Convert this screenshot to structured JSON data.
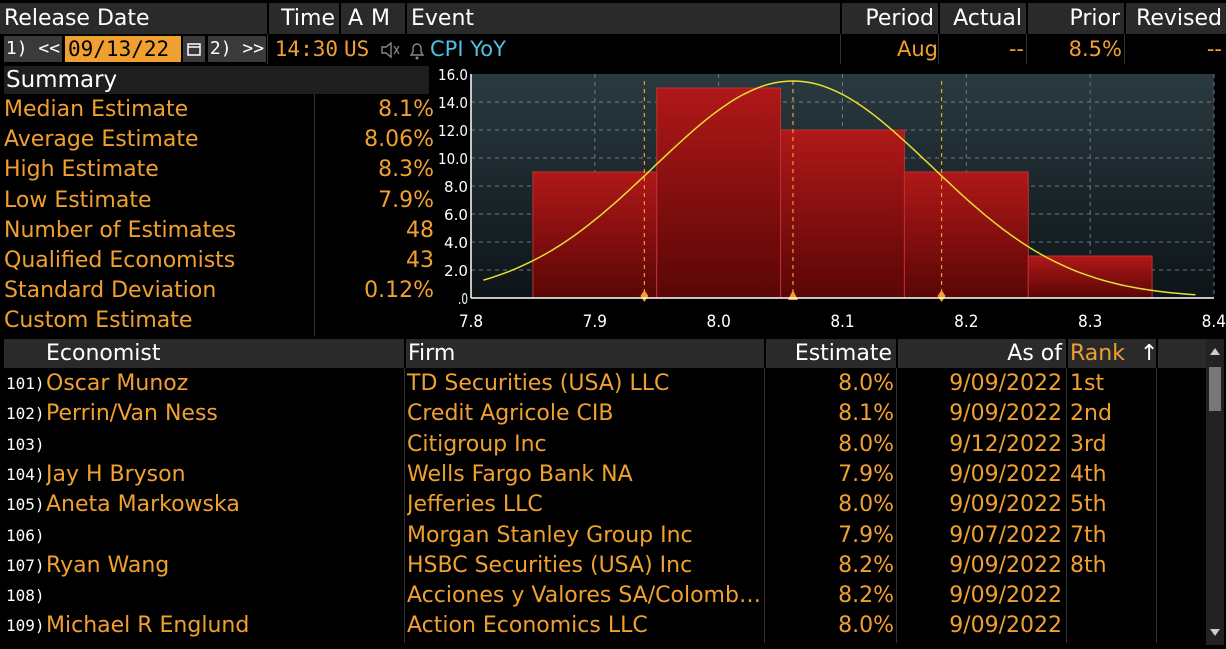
{
  "header": {
    "release_date": "Release Date",
    "time": "Time",
    "a": "A",
    "m": "M",
    "event": "Event",
    "period": "Period",
    "actual": "Actual",
    "prior": "Prior",
    "revised": "Revised"
  },
  "release": {
    "prev_label": "1) <<",
    "date": "09/13/22",
    "next_label": "2) >>",
    "time": "14:30",
    "country": "US",
    "event": "CPI YoY",
    "period": "Aug",
    "actual": "--",
    "prior": "8.5%",
    "revised": "--"
  },
  "summary": {
    "title": "Summary",
    "items": [
      {
        "label": "Median Estimate",
        "value": "8.1%"
      },
      {
        "label": "Average Estimate",
        "value": "8.06%"
      },
      {
        "label": "High Estimate",
        "value": "8.3%"
      },
      {
        "label": "Low Estimate",
        "value": "7.9%"
      },
      {
        "label": "Number of Estimates",
        "value": "48"
      },
      {
        "label": "Qualified Economists",
        "value": "43"
      },
      {
        "label": "Standard Deviation",
        "value": "0.12%"
      },
      {
        "label": "Custom Estimate",
        "value": ""
      }
    ]
  },
  "chart_data": {
    "type": "bar",
    "title": "",
    "xlabel": "",
    "ylabel": "",
    "x_ticks": [
      "7.8",
      "7.9",
      "8.0",
      "8.1",
      "8.2",
      "8.3",
      "8.4"
    ],
    "y_ticks": [
      ".0",
      "2.0",
      "4.0",
      "6.0",
      "8.0",
      "10.0",
      "12.0",
      "14.0",
      "16.0"
    ],
    "xlim": [
      7.8,
      8.4
    ],
    "ylim": [
      0,
      16
    ],
    "bins": [
      {
        "from": 7.85,
        "to": 7.95,
        "value": 9
      },
      {
        "from": 7.95,
        "to": 8.05,
        "value": 15
      },
      {
        "from": 8.05,
        "to": 8.15,
        "value": 12
      },
      {
        "from": 8.15,
        "to": 8.25,
        "value": 9
      },
      {
        "from": 8.25,
        "to": 8.35,
        "value": 3
      }
    ],
    "normal_curve": {
      "mean": 8.06,
      "sd": 0.12,
      "peak": 15.5
    },
    "markers": [
      7.94,
      8.06,
      8.18
    ],
    "grid": true,
    "colors": {
      "bar": "#a01010",
      "curve": "#e8e030",
      "marker": "#f0a030",
      "plot_bg": "#1a2a30"
    }
  },
  "table": {
    "columns": {
      "economist": "Economist",
      "firm": "Firm",
      "estimate": "Estimate",
      "as_of": "As of",
      "rank": "Rank",
      "sort_icon": "↑"
    },
    "rows": [
      {
        "num": "101)",
        "economist": "Oscar Munoz",
        "firm": "TD Securities (USA) LLC",
        "estimate": "8.0%",
        "as_of": "9/09/2022",
        "rank": "1st"
      },
      {
        "num": "102)",
        "economist": "Perrin/Van Ness",
        "firm": "Credit Agricole CIB",
        "estimate": "8.1%",
        "as_of": "9/09/2022",
        "rank": "2nd"
      },
      {
        "num": "103)",
        "economist": "",
        "firm": "Citigroup Inc",
        "estimate": "8.0%",
        "as_of": "9/12/2022",
        "rank": "3rd"
      },
      {
        "num": "104)",
        "economist": "Jay H Bryson",
        "firm": "Wells Fargo Bank NA",
        "estimate": "7.9%",
        "as_of": "9/09/2022",
        "rank": "4th"
      },
      {
        "num": "105)",
        "economist": "Aneta Markowska",
        "firm": "Jefferies LLC",
        "estimate": "8.0%",
        "as_of": "9/09/2022",
        "rank": "5th"
      },
      {
        "num": "106)",
        "economist": "",
        "firm": "Morgan Stanley Group Inc",
        "estimate": "7.9%",
        "as_of": "9/07/2022",
        "rank": "7th"
      },
      {
        "num": "107)",
        "economist": "Ryan Wang",
        "firm": "HSBC Securities (USA) Inc",
        "estimate": "8.2%",
        "as_of": "9/09/2022",
        "rank": "8th"
      },
      {
        "num": "108)",
        "economist": "",
        "firm": "Acciones y Valores SA/Colomb…",
        "estimate": "8.2%",
        "as_of": "9/09/2022",
        "rank": ""
      },
      {
        "num": "109)",
        "economist": "Michael R Englund",
        "firm": "Action Economics LLC",
        "estimate": "8.0%",
        "as_of": "9/09/2022",
        "rank": ""
      }
    ]
  }
}
